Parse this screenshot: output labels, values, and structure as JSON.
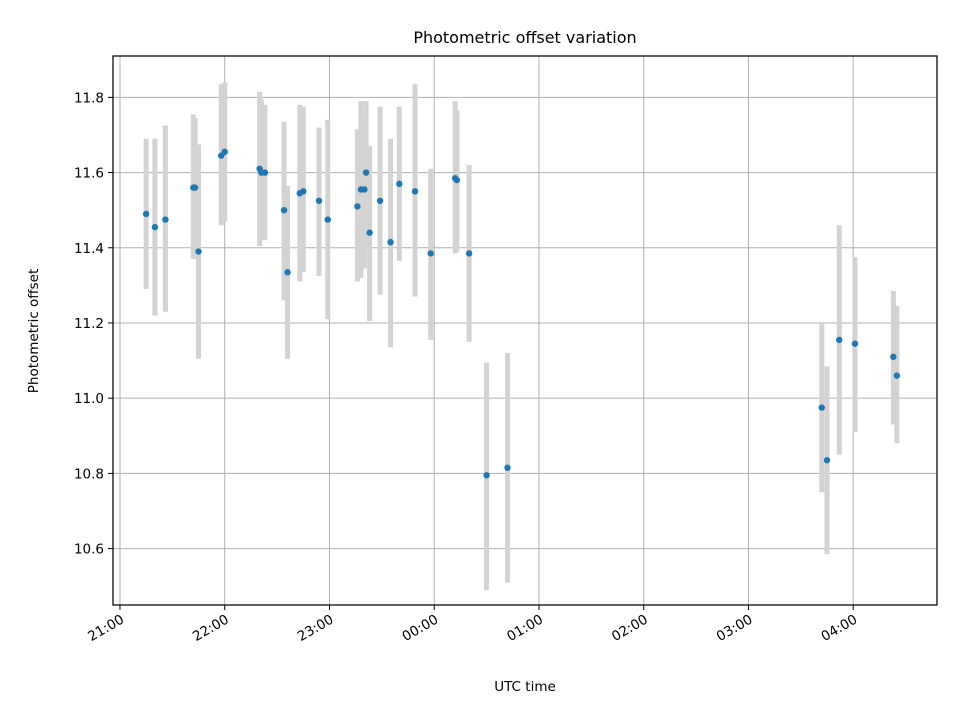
{
  "chart_data": {
    "type": "scatter",
    "title": "Photometric offset variation",
    "xlabel": "UTC time",
    "ylabel": "Photometric offset",
    "x_axis_kind": "time",
    "xlim": [
      "20:56",
      "04:48"
    ],
    "ylim": [
      10.45,
      11.91
    ],
    "x_ticks": [
      "21:00",
      "22:00",
      "23:00",
      "00:00",
      "01:00",
      "02:00",
      "03:00",
      "04:00"
    ],
    "y_ticks": [
      "10.6",
      "10.8",
      "11.0",
      "11.2",
      "11.4",
      "11.6",
      "11.8"
    ],
    "y_tick_values": [
      10.6,
      10.8,
      11.0,
      11.2,
      11.4,
      11.6,
      11.8
    ],
    "grid": true,
    "marker_color": "#1f77b4",
    "errorbar_color": "#d3d3d3",
    "points": [
      {
        "time": "21:15",
        "y": 11.49,
        "ylow": 11.29,
        "yhigh": 11.69
      },
      {
        "time": "21:20",
        "y": 11.455,
        "ylow": 11.22,
        "yhigh": 11.69
      },
      {
        "time": "21:26",
        "y": 11.475,
        "ylow": 11.23,
        "yhigh": 11.725
      },
      {
        "time": "21:42",
        "y": 11.56,
        "ylow": 11.37,
        "yhigh": 11.755
      },
      {
        "time": "21:43",
        "y": 11.56,
        "ylow": 11.37,
        "yhigh": 11.745
      },
      {
        "time": "21:45",
        "y": 11.39,
        "ylow": 11.105,
        "yhigh": 11.675
      },
      {
        "time": "21:58",
        "y": 11.645,
        "ylow": 11.46,
        "yhigh": 11.835
      },
      {
        "time": "22:00",
        "y": 11.655,
        "ylow": 11.47,
        "yhigh": 11.84
      },
      {
        "time": "22:20",
        "y": 11.61,
        "ylow": 11.405,
        "yhigh": 11.815
      },
      {
        "time": "22:21",
        "y": 11.6,
        "ylow": 11.42,
        "yhigh": 11.795
      },
      {
        "time": "22:23",
        "y": 11.6,
        "ylow": 11.42,
        "yhigh": 11.78
      },
      {
        "time": "22:34",
        "y": 11.5,
        "ylow": 11.26,
        "yhigh": 11.735
      },
      {
        "time": "22:36",
        "y": 11.335,
        "ylow": 11.105,
        "yhigh": 11.565
      },
      {
        "time": "22:43",
        "y": 11.545,
        "ylow": 11.31,
        "yhigh": 11.78
      },
      {
        "time": "22:45",
        "y": 11.55,
        "ylow": 11.335,
        "yhigh": 11.775
      },
      {
        "time": "22:54",
        "y": 11.525,
        "ylow": 11.325,
        "yhigh": 11.72
      },
      {
        "time": "22:59",
        "y": 11.475,
        "ylow": 11.21,
        "yhigh": 11.74
      },
      {
        "time": "23:16",
        "y": 11.51,
        "ylow": 11.31,
        "yhigh": 11.715
      },
      {
        "time": "23:18",
        "y": 11.555,
        "ylow": 11.32,
        "yhigh": 11.79
      },
      {
        "time": "23:20",
        "y": 11.555,
        "ylow": 11.345,
        "yhigh": 11.74
      },
      {
        "time": "23:21",
        "y": 11.6,
        "ylow": 11.41,
        "yhigh": 11.79
      },
      {
        "time": "23:23",
        "y": 11.44,
        "ylow": 11.205,
        "yhigh": 11.67
      },
      {
        "time": "23:29",
        "y": 11.525,
        "ylow": 11.275,
        "yhigh": 11.775
      },
      {
        "time": "23:35",
        "y": 11.415,
        "ylow": 11.135,
        "yhigh": 11.69
      },
      {
        "time": "23:40",
        "y": 11.57,
        "ylow": 11.365,
        "yhigh": 11.775
      },
      {
        "time": "23:49",
        "y": 11.55,
        "ylow": 11.27,
        "yhigh": 11.835
      },
      {
        "time": "23:58",
        "y": 11.385,
        "ylow": 11.155,
        "yhigh": 11.61
      },
      {
        "time": "00:12",
        "y": 11.585,
        "ylow": 11.385,
        "yhigh": 11.79
      },
      {
        "time": "00:13",
        "y": 11.58,
        "ylow": 11.39,
        "yhigh": 11.765
      },
      {
        "time": "00:20",
        "y": 11.385,
        "ylow": 11.15,
        "yhigh": 11.62
      },
      {
        "time": "00:30",
        "y": 10.795,
        "ylow": 10.49,
        "yhigh": 11.095
      },
      {
        "time": "00:42",
        "y": 10.815,
        "ylow": 10.51,
        "yhigh": 11.12
      },
      {
        "time": "03:42",
        "y": 10.975,
        "ylow": 10.75,
        "yhigh": 11.2
      },
      {
        "time": "03:45",
        "y": 10.835,
        "ylow": 10.585,
        "yhigh": 11.085
      },
      {
        "time": "03:52",
        "y": 11.155,
        "ylow": 10.85,
        "yhigh": 11.46
      },
      {
        "time": "04:01",
        "y": 11.145,
        "ylow": 10.91,
        "yhigh": 11.375
      },
      {
        "time": "04:23",
        "y": 11.11,
        "ylow": 10.93,
        "yhigh": 11.285
      },
      {
        "time": "04:25",
        "y": 11.06,
        "ylow": 10.88,
        "yhigh": 11.245
      }
    ]
  }
}
